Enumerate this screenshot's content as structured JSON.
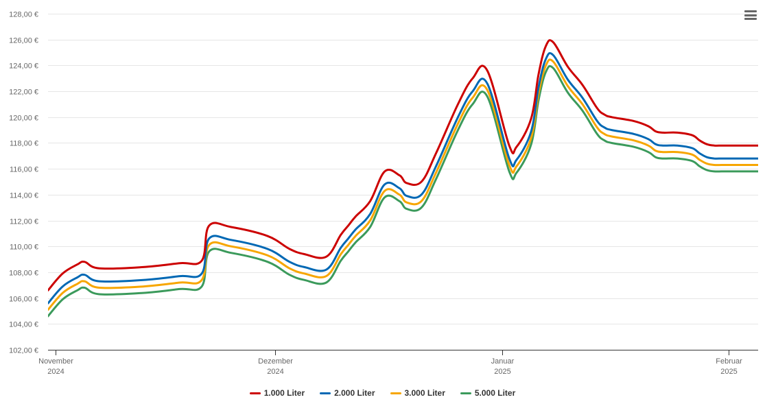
{
  "chart_data": {
    "type": "line",
    "title": "",
    "xlabel": "",
    "ylabel": "",
    "ylim": [
      102,
      128
    ],
    "y_ticks": [
      102,
      104,
      106,
      108,
      110,
      112,
      114,
      116,
      118,
      120,
      122,
      124,
      126,
      128
    ],
    "y_tick_labels": [
      "102,00 €",
      "104,00 €",
      "106,00 €",
      "108,00 €",
      "110,00 €",
      "112,00 €",
      "114,00 €",
      "116,00 €",
      "118,00 €",
      "120,00 €",
      "122,00 €",
      "124,00 €",
      "126,00 €",
      "128,00 €"
    ],
    "x_range": [
      "2024-10-31",
      "2025-02-05"
    ],
    "x_ticks": [
      {
        "date": "2024-11-01",
        "label_month": "November",
        "label_year": "2024"
      },
      {
        "date": "2024-12-01",
        "label_month": "Dezember",
        "label_year": "2024"
      },
      {
        "date": "2025-01-01",
        "label_month": "Januar",
        "label_year": "2025"
      },
      {
        "date": "2025-02-01",
        "label_month": "Februar",
        "label_year": "2025"
      }
    ],
    "grid": true,
    "legend_position": "bottom-center",
    "x": [
      "2024-10-31",
      "2024-11-02",
      "2024-11-04",
      "2024-11-05",
      "2024-11-07",
      "2024-11-13",
      "2024-11-18",
      "2024-11-21",
      "2024-11-22",
      "2024-11-25",
      "2024-11-30",
      "2024-12-03",
      "2024-12-05",
      "2024-12-08",
      "2024-12-10",
      "2024-12-11",
      "2024-12-12",
      "2024-12-14",
      "2024-12-16",
      "2024-12-18",
      "2024-12-19",
      "2024-12-21",
      "2024-12-23",
      "2024-12-26",
      "2024-12-28",
      "2024-12-30",
      "2025-01-02",
      "2025-01-03",
      "2025-01-05",
      "2025-01-06",
      "2025-01-07",
      "2025-01-08",
      "2025-01-10",
      "2025-01-12",
      "2025-01-14",
      "2025-01-15",
      "2025-01-16",
      "2025-01-19",
      "2025-01-21",
      "2025-01-22",
      "2025-01-23",
      "2025-01-25",
      "2025-01-27",
      "2025-01-28",
      "2025-01-29",
      "2025-01-30",
      "2025-01-31",
      "2025-02-01",
      "2025-02-03",
      "2025-02-05"
    ],
    "series": [
      {
        "name": "1.000 Liter",
        "color": "#cc0000",
        "values": [
          106.6,
          107.9,
          108.6,
          108.8,
          108.3,
          108.4,
          108.7,
          108.9,
          111.6,
          111.5,
          110.8,
          109.8,
          109.4,
          109.2,
          110.9,
          111.6,
          112.3,
          113.5,
          115.8,
          115.5,
          114.9,
          115.0,
          117.2,
          121.0,
          123.0,
          123.6,
          117.8,
          117.7,
          119.9,
          123.3,
          125.5,
          125.8,
          123.9,
          122.5,
          120.7,
          120.2,
          120.0,
          119.7,
          119.3,
          118.9,
          118.8,
          118.8,
          118.6,
          118.2,
          117.9,
          117.8,
          117.8,
          117.8,
          117.8,
          117.8
        ]
      },
      {
        "name": "2.000 Liter",
        "color": "#0068b4",
        "values": [
          105.6,
          106.9,
          107.6,
          107.8,
          107.3,
          107.4,
          107.7,
          107.9,
          110.6,
          110.5,
          109.8,
          108.8,
          108.4,
          108.2,
          109.9,
          110.6,
          111.3,
          112.5,
          114.8,
          114.5,
          113.9,
          114.0,
          116.2,
          120.0,
          122.0,
          122.6,
          116.8,
          116.7,
          118.9,
          122.3,
          124.5,
          124.8,
          122.9,
          121.5,
          119.7,
          119.2,
          119.0,
          118.7,
          118.3,
          117.9,
          117.8,
          117.8,
          117.6,
          117.2,
          116.9,
          116.8,
          116.8,
          116.8,
          116.8,
          116.8
        ]
      },
      {
        "name": "3.000 Liter",
        "color": "#f7a600",
        "values": [
          105.1,
          106.4,
          107.1,
          107.3,
          106.8,
          106.9,
          107.2,
          107.4,
          110.1,
          110.0,
          109.3,
          108.3,
          107.9,
          107.7,
          109.4,
          110.1,
          110.8,
          112.0,
          114.3,
          114.0,
          113.4,
          113.5,
          115.7,
          119.5,
          121.5,
          122.1,
          116.3,
          116.2,
          118.4,
          121.8,
          124.0,
          124.3,
          122.4,
          121.0,
          119.2,
          118.7,
          118.5,
          118.2,
          117.8,
          117.4,
          117.3,
          117.3,
          117.1,
          116.7,
          116.4,
          116.3,
          116.3,
          116.3,
          116.3,
          116.3
        ]
      },
      {
        "name": "5.000 Liter",
        "color": "#3b9a5b",
        "values": [
          104.6,
          105.9,
          106.6,
          106.8,
          106.3,
          106.4,
          106.7,
          106.9,
          109.6,
          109.5,
          108.8,
          107.8,
          107.4,
          107.2,
          108.9,
          109.6,
          110.3,
          111.5,
          113.8,
          113.5,
          112.9,
          113.0,
          115.2,
          119.0,
          121.0,
          121.6,
          115.8,
          115.7,
          117.9,
          121.3,
          123.5,
          123.8,
          121.9,
          120.5,
          118.7,
          118.2,
          118.0,
          117.7,
          117.3,
          116.9,
          116.8,
          116.8,
          116.6,
          116.2,
          115.9,
          115.8,
          115.8,
          115.8,
          115.8,
          115.8
        ]
      }
    ]
  },
  "legend": {
    "items": [
      {
        "label": "1.000 Liter",
        "color": "#cc0000"
      },
      {
        "label": "2.000 Liter",
        "color": "#0068b4"
      },
      {
        "label": "3.000 Liter",
        "color": "#f7a600"
      },
      {
        "label": "5.000 Liter",
        "color": "#3b9a5b"
      }
    ]
  },
  "menu": {
    "icon": "hamburger-menu-icon"
  }
}
